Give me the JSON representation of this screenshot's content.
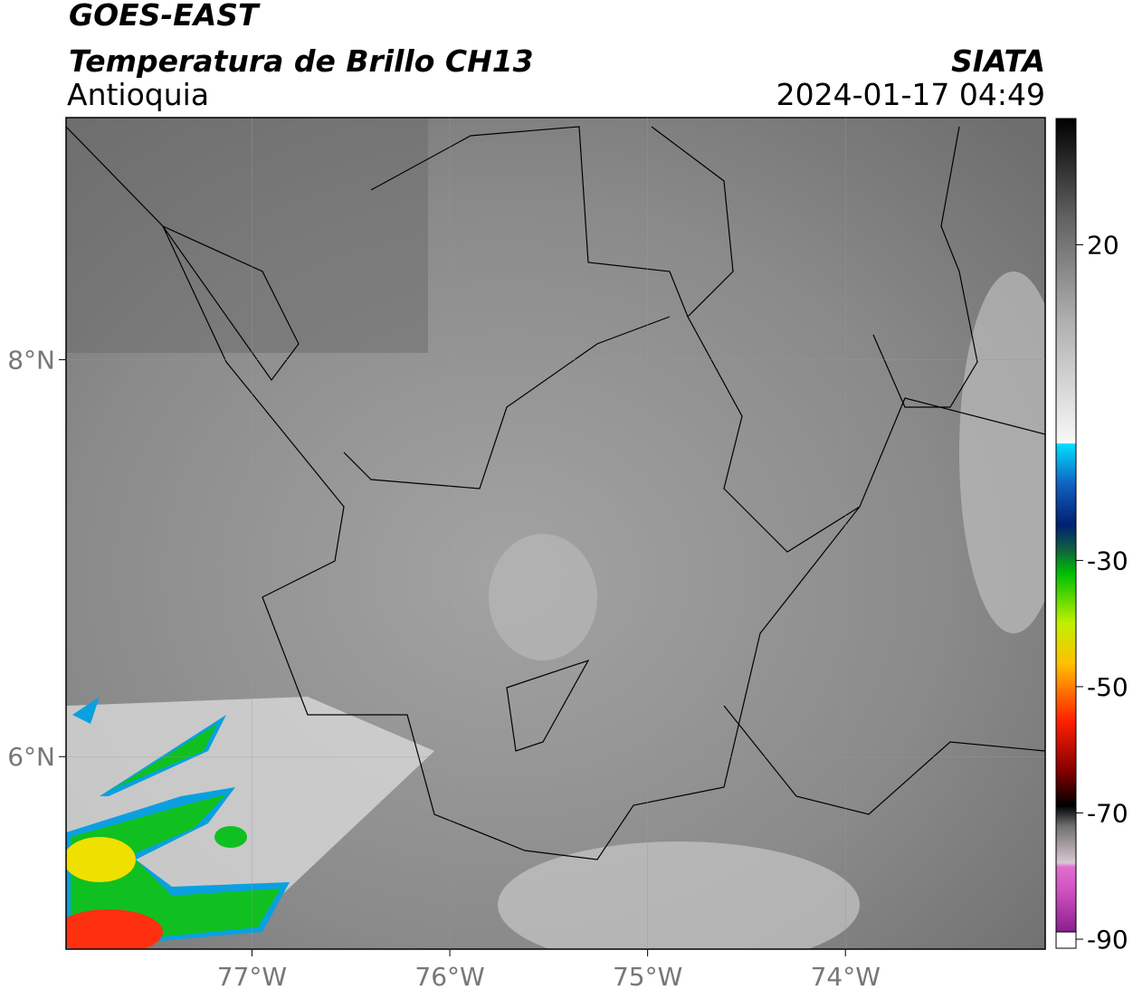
{
  "header": {
    "satellite": "GOES-EAST",
    "product": "Temperatura de Brillo CH13",
    "region": "Antioquia",
    "agency": "SIATA",
    "datetime": "2024-01-17 04:49"
  },
  "map": {
    "xlim": [
      -77.94,
      -72.99
    ],
    "ylim": [
      5.03,
      9.22
    ],
    "xticks": [
      {
        "value": -77,
        "label": "77°W"
      },
      {
        "value": -76,
        "label": "76°W"
      },
      {
        "value": -75,
        "label": "75°W"
      },
      {
        "value": -74,
        "label": "74°W"
      }
    ],
    "yticks": [
      {
        "value": 8,
        "label": "8°N"
      },
      {
        "value": 6,
        "label": "6°N"
      }
    ]
  },
  "colorbar": {
    "lim": [
      -90,
      40
    ],
    "ticks": [
      20,
      -30,
      -50,
      -70,
      -90
    ]
  }
}
